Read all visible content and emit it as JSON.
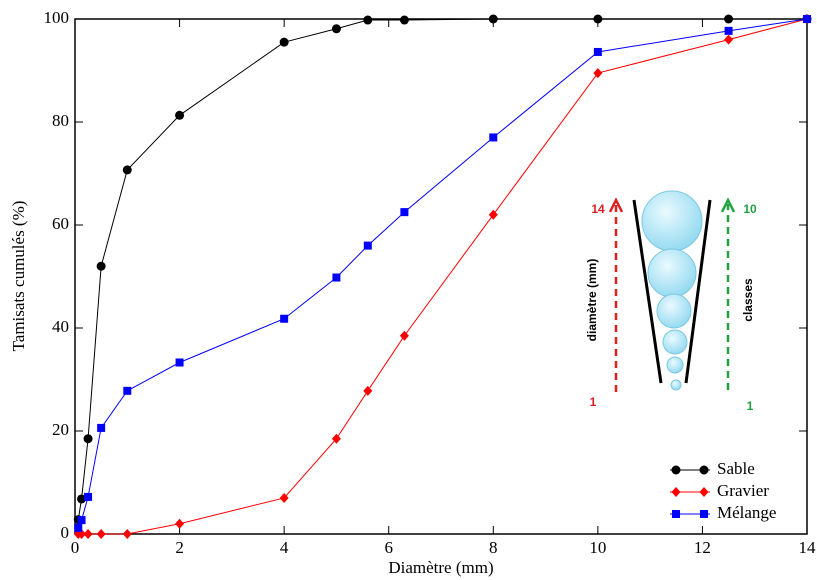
{
  "chart_data": {
    "type": "line",
    "xlabel": "Diamètre (mm)",
    "ylabel": "Tamisats cumulés (%)",
    "xlim": [
      0,
      14
    ],
    "xticks": [
      0,
      2,
      4,
      6,
      8,
      10,
      12,
      14
    ],
    "ylim": [
      0,
      100
    ],
    "yticks": [
      0,
      20,
      40,
      60,
      80,
      100
    ],
    "legend": "lower right",
    "x": [
      0.063,
      0.125,
      0.25,
      0.5,
      1,
      2,
      4,
      5,
      5.6,
      6.3,
      8,
      10,
      12.5,
      14
    ],
    "series": [
      {
        "name": "Sable",
        "color": "#000000",
        "marker": "circle",
        "values": [
          2.8,
          6.8,
          18.5,
          52,
          70.7,
          81.3,
          95.5,
          98.1,
          99.8,
          99.8,
          100,
          100,
          100,
          100
        ]
      },
      {
        "name": "Gravier",
        "color": "#ff0000",
        "marker": "diamond",
        "values": [
          0,
          0,
          0,
          0,
          0,
          2,
          7,
          18.5,
          27.8,
          38.5,
          62,
          89.5,
          96,
          100
        ]
      },
      {
        "name": "Mélange",
        "color": "#0000ff",
        "marker": "square",
        "values": [
          1.2,
          2.7,
          7.2,
          20.6,
          27.8,
          33.3,
          41.8,
          49.8,
          56,
          62.5,
          77,
          93.6,
          97.7,
          100
        ]
      }
    ],
    "annotations": [
      "14",
      "1",
      "diamètre (mm)",
      "10",
      "1",
      "classes"
    ]
  }
}
